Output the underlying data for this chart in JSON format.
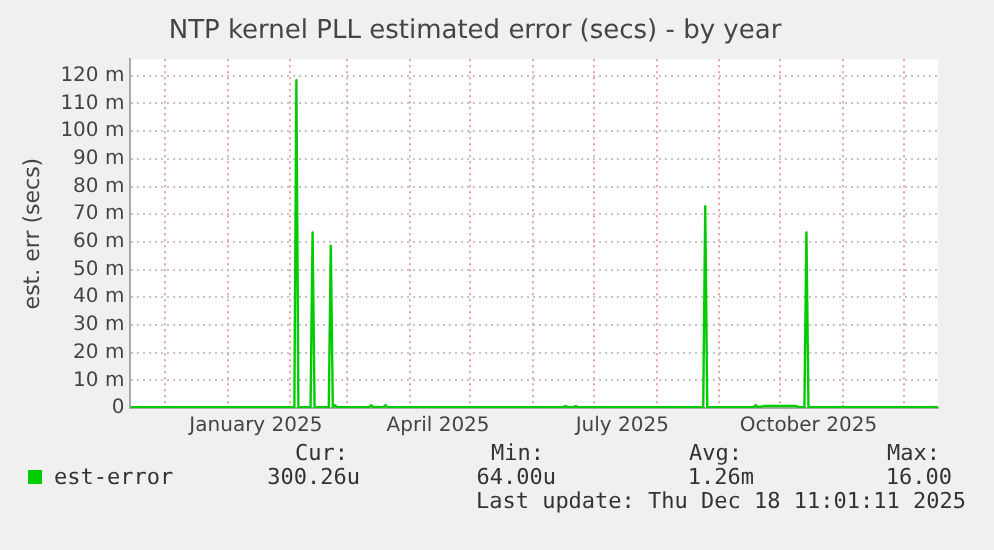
{
  "chart_data": {
    "type": "line",
    "title": "NTP kernel PLL estimated error (secs) - by year",
    "ylabel": "est. err (secs)",
    "x": [
      "2024-11-14",
      "2025-02-03",
      "2025-02-04",
      "2025-02-05",
      "2025-02-11",
      "2025-02-12",
      "2025-02-13",
      "2025-02-20",
      "2025-02-21",
      "2025-02-22",
      "2025-02-23",
      "2025-02-24",
      "2025-03-12",
      "2025-03-13",
      "2025-03-14",
      "2025-03-19",
      "2025-03-20",
      "2025-03-21",
      "2025-06-16",
      "2025-06-17",
      "2025-06-18",
      "2025-06-21",
      "2025-06-22",
      "2025-06-23",
      "2025-08-24",
      "2025-08-25",
      "2025-08-26",
      "2025-09-18",
      "2025-09-19",
      "2025-09-20",
      "2025-09-23",
      "2025-10-09",
      "2025-10-10",
      "2025-10-13",
      "2025-10-14",
      "2025-10-15",
      "2025-10-31",
      "2025-11-01",
      "2025-11-02",
      "2025-12-18"
    ],
    "series": [
      {
        "name": "est-error",
        "color": "#00cc00",
        "values": [
          0.3,
          0.3,
          118.4,
          0.3,
          0.3,
          63.4,
          0.3,
          0.3,
          58.6,
          0.3,
          1,
          0.3,
          0.3,
          1,
          0.3,
          0.3,
          1,
          0.3,
          0.3,
          0.7,
          0.3,
          0.3,
          0.7,
          0.3,
          0.3,
          72.9,
          0.3,
          0.3,
          1,
          0.3,
          0.7,
          0.7,
          0.3,
          0.3,
          63.4,
          0.3,
          0.3,
          0.5,
          0.3,
          0.3
        ]
      }
    ],
    "xlim": [
      "2024-11-14",
      "2025-12-18"
    ],
    "xticks": [
      {
        "value": "2024-12-01",
        "label": null
      },
      {
        "value": "2025-01-01",
        "label": null
      },
      {
        "value": "2025-01-15",
        "label": "January 2025"
      },
      {
        "value": "2025-02-01",
        "label": null
      },
      {
        "value": "2025-03-01",
        "label": null
      },
      {
        "value": "2025-04-01",
        "label": null
      },
      {
        "value": "2025-04-15",
        "label": "April 2025"
      },
      {
        "value": "2025-05-01",
        "label": null
      },
      {
        "value": "2025-06-01",
        "label": null
      },
      {
        "value": "2025-07-01",
        "label": null
      },
      {
        "value": "2025-07-15",
        "label": "July 2025"
      },
      {
        "value": "2025-08-01",
        "label": null
      },
      {
        "value": "2025-09-01",
        "label": null
      },
      {
        "value": "2025-10-01",
        "label": null
      },
      {
        "value": "2025-10-15",
        "label": "October 2025"
      },
      {
        "value": "2025-11-01",
        "label": null
      },
      {
        "value": "2025-12-01",
        "label": null
      }
    ],
    "ylim": [
      0,
      126
    ],
    "yticks": [
      0,
      {
        "value": 10,
        "label": "10 m"
      },
      {
        "value": 20,
        "label": "20 m"
      },
      {
        "value": 30,
        "label": "30 m"
      },
      {
        "value": 40,
        "label": "40 m"
      },
      {
        "value": 50,
        "label": "50 m"
      },
      {
        "value": 60,
        "label": "60 m"
      },
      {
        "value": 70,
        "label": "70 m"
      },
      {
        "value": 80,
        "label": "80 m"
      },
      {
        "value": 90,
        "label": "90 m"
      },
      {
        "value": 100,
        "label": "100 m"
      },
      {
        "value": 110,
        "label": "110 m"
      },
      {
        "value": 120,
        "label": "120 m"
      }
    ],
    "grid": true,
    "legend": "bottom left",
    "marker": "none",
    "line_style": "solid",
    "annotations": [
      "Cur:",
      "300.26u",
      "Min:",
      "64.00u",
      "Avg:",
      "1.26m",
      "Max:",
      "16.00",
      "Last update: Thu Dec 18 11:01:11 2025"
    ]
  }
}
